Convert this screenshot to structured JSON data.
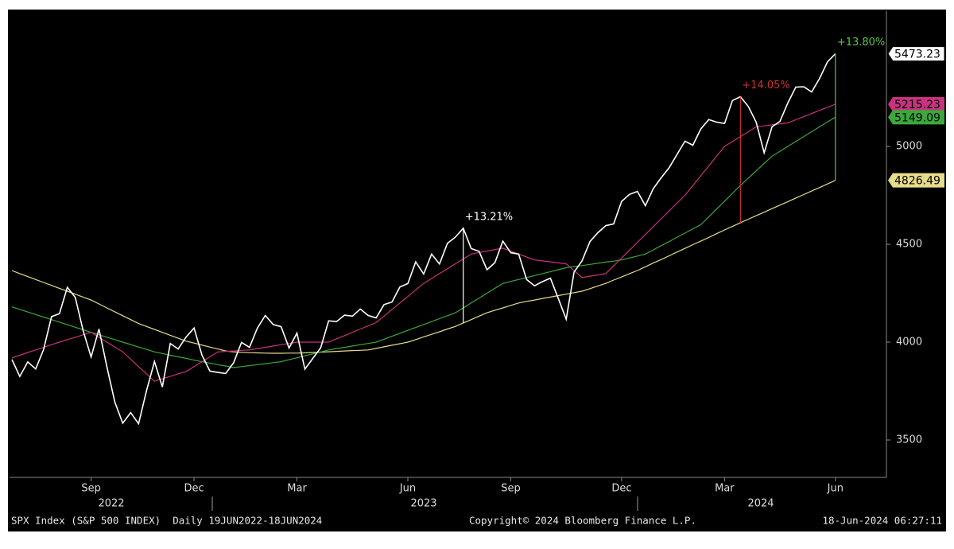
{
  "chart_data": {
    "type": "line",
    "categories": [
      null,
      null,
      null,
      null,
      null,
      null,
      null,
      null,
      null,
      null,
      "Sep",
      null,
      null,
      null,
      null,
      null,
      null,
      null,
      null,
      null,
      null,
      null,
      null,
      "Dec",
      null,
      null,
      null,
      null,
      null,
      null,
      null,
      null,
      null,
      null,
      null,
      null,
      "Mar",
      null,
      null,
      null,
      null,
      null,
      null,
      null,
      null,
      null,
      null,
      null,
      null,
      null,
      "Jun",
      null,
      null,
      null,
      null,
      null,
      null,
      null,
      null,
      null,
      null,
      null,
      null,
      "Sep",
      null,
      null,
      null,
      null,
      null,
      null,
      null,
      null,
      null,
      null,
      null,
      null,
      null,
      "Dec",
      null,
      null,
      null,
      null,
      null,
      null,
      null,
      null,
      null,
      null,
      null,
      null,
      "Mar",
      null,
      null,
      null,
      null,
      null,
      null,
      null,
      null,
      null,
      null,
      null,
      null,
      null,
      "Jun"
    ],
    "year_labels": [
      "2022",
      "2023",
      "2024"
    ],
    "series": [
      {
        "color": "#ffffff",
        "values": [
          3911,
          3825,
          3899,
          3863,
          3962,
          4130,
          4145,
          4280,
          4228,
          4058,
          3924,
          4067,
          3873,
          3693,
          3586,
          3640,
          3583,
          3752,
          3901,
          3771,
          3993,
          3965,
          4026,
          4072,
          3934,
          3852,
          3845,
          3840,
          3895,
          3999,
          3973,
          4071,
          4136,
          4090,
          4079,
          3970,
          4046,
          3862,
          3917,
          3971,
          4109,
          4105,
          4138,
          4133,
          4169,
          4136,
          4124,
          4192,
          4205,
          4282,
          4299,
          4410,
          4348,
          4450,
          4399,
          4505,
          4536,
          4582,
          4478,
          4464,
          4370,
          4406,
          4516,
          4457,
          4450,
          4320,
          4288,
          4309,
          4327,
          4224,
          4117,
          4358,
          4415,
          4514,
          4559,
          4595,
          4604,
          4719,
          4755,
          4770,
          4697,
          4784,
          4840,
          4891,
          4959,
          5027,
          5006,
          5089,
          5137,
          5124,
          5117,
          5234,
          5254,
          5204,
          5123,
          4967,
          5100,
          5128,
          5223,
          5303,
          5305,
          5278,
          5347,
          5432,
          5473.23
        ]
      },
      {
        "color": "#c8327e",
        "values": [
          3920,
          3933,
          3947,
          3960,
          3973,
          3987,
          4000,
          4013,
          4025,
          4038,
          4050,
          4025,
          4000,
          3975,
          3950,
          3913,
          3875,
          3838,
          3800,
          3813,
          3825,
          3838,
          3850,
          3875,
          3900,
          3925,
          3950,
          3953,
          3955,
          3958,
          3960,
          3967,
          3973,
          3980,
          3987,
          3993,
          4000,
          4000,
          4000,
          4000,
          4000,
          4017,
          4033,
          4050,
          4067,
          4083,
          4100,
          4133,
          4167,
          4200,
          4233,
          4267,
          4300,
          4325,
          4350,
          4375,
          4400,
          4425,
          4450,
          4458,
          4465,
          4473,
          4480,
          4465,
          4450,
          4435,
          4420,
          4415,
          4410,
          4405,
          4400,
          4365,
          4330,
          4337,
          4343,
          4350,
          4390,
          4430,
          4470,
          4510,
          4550,
          4590,
          4630,
          4670,
          4710,
          4750,
          4800,
          4850,
          4900,
          4950,
          5000,
          5025,
          5050,
          5075,
          5100,
          5105,
          5110,
          5115,
          5120,
          5136,
          5152,
          5168,
          5184,
          5200,
          5215.23
        ]
      },
      {
        "color": "#3aa83a",
        "values": [
          4180,
          4167,
          4154,
          4141,
          4128,
          4115,
          4102,
          4089,
          4076,
          4063,
          4050,
          4038,
          4025,
          4013,
          4000,
          3988,
          3975,
          3963,
          3950,
          3942,
          3933,
          3925,
          3917,
          3908,
          3900,
          3893,
          3885,
          3878,
          3870,
          3875,
          3880,
          3885,
          3890,
          3895,
          3900,
          3910,
          3920,
          3930,
          3940,
          3950,
          3960,
          3967,
          3973,
          3980,
          3987,
          3993,
          4000,
          4015,
          4030,
          4045,
          4060,
          4075,
          4090,
          4105,
          4120,
          4135,
          4150,
          4175,
          4200,
          4225,
          4250,
          4275,
          4300,
          4310,
          4320,
          4330,
          4340,
          4350,
          4360,
          4370,
          4380,
          4386,
          4391,
          4397,
          4403,
          4409,
          4414,
          4420,
          4430,
          4440,
          4450,
          4471,
          4493,
          4514,
          4536,
          4557,
          4579,
          4600,
          4640,
          4680,
          4720,
          4760,
          4800,
          4838,
          4875,
          4913,
          4950,
          4975,
          5000,
          5025,
          5050,
          5075,
          5100,
          5125,
          5149.09
        ]
      },
      {
        "color": "#e6dc8a",
        "values": [
          4366,
          4350,
          4335,
          4320,
          4305,
          4290,
          4275,
          4260,
          4245,
          4230,
          4215,
          4195,
          4175,
          4155,
          4135,
          4115,
          4095,
          4080,
          4065,
          4050,
          4035,
          4020,
          4005,
          3995,
          3985,
          3975,
          3965,
          3955,
          3950,
          3948,
          3946,
          3945,
          3944,
          3943,
          3943,
          3944,
          3944,
          3945,
          3947,
          3949,
          3951,
          3953,
          3955,
          3957,
          3958,
          3960,
          3968,
          3976,
          3984,
          3992,
          4000,
          4013,
          4027,
          4040,
          4053,
          4067,
          4080,
          4098,
          4115,
          4133,
          4150,
          4163,
          4175,
          4188,
          4200,
          4208,
          4215,
          4223,
          4230,
          4238,
          4245,
          4253,
          4260,
          4273,
          4287,
          4300,
          4317,
          4333,
          4350,
          4366,
          4385,
          4404,
          4422,
          4441,
          4460,
          4479,
          4498,
          4516,
          4535,
          4554,
          4573,
          4591,
          4610,
          4628,
          4646,
          4664,
          4682,
          4700,
          4718,
          4736,
          4754,
          4772,
          4790,
          4808,
          4826.49
        ]
      }
    ],
    "annotations": [
      {
        "text": "+13.21%",
        "color": "#ffffff"
      },
      {
        "text": "+14.05%",
        "color": "#d03030"
      },
      {
        "text": "+13.80%",
        "color": "#5cc84a"
      }
    ],
    "ylim": [
      3309,
      5691
    ],
    "yticks": [
      3500,
      4000,
      4500,
      5000
    ],
    "footer": {
      "left": "SPX Index (S&P 500 INDEX)  Daily 19JUN2022-18JUN2024",
      "center": "Copyright© 2024 Bloomberg Finance L.P.",
      "right": "18-Jun-2024 06:27:11"
    }
  }
}
